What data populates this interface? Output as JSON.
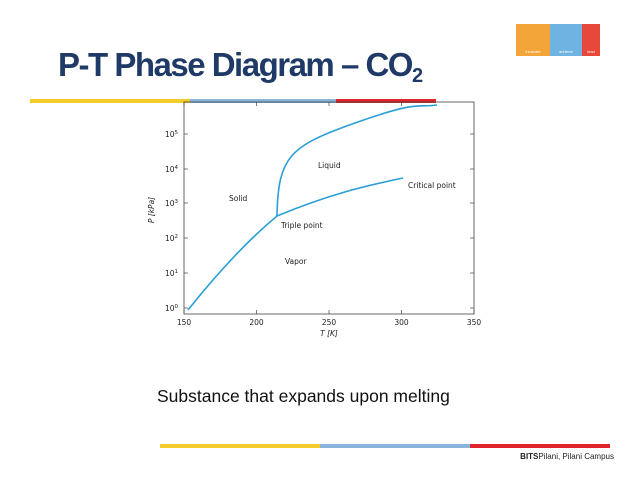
{
  "slide": {
    "title_main": "P-T Phase Diagram – CO",
    "title_sub": "2",
    "caption": "Substance that expands upon melting",
    "footer_bold": "BITS",
    "footer_rest": "Pilani, Pilani Campus",
    "logo_labels": [
      "innovate",
      "achieve",
      "lead"
    ]
  },
  "colors": {
    "title": "#1f3a66",
    "curve": "#2a9ed6",
    "bar_yellow": "#f3cc2b",
    "bar_blue": "#8ab6dd",
    "bar_red": "#e0242b",
    "logo_orange": "#f4a53a",
    "logo_blue": "#6fb3e3",
    "logo_red": "#e8483a"
  },
  "diagram": {
    "xlabel": "T [K]",
    "ylabel": "P [kPa]",
    "xticks": [
      "150",
      "200",
      "250",
      "300",
      "350"
    ],
    "yticks": [
      {
        "base": "10",
        "exp": "0"
      },
      {
        "base": "10",
        "exp": "1"
      },
      {
        "base": "10",
        "exp": "2"
      },
      {
        "base": "10",
        "exp": "3"
      },
      {
        "base": "10",
        "exp": "4"
      },
      {
        "base": "10",
        "exp": "5"
      }
    ],
    "regions": [
      "Solid",
      "Liquid",
      "Vapor"
    ],
    "annotations": [
      "Triple point",
      "Critical point"
    ]
  }
}
